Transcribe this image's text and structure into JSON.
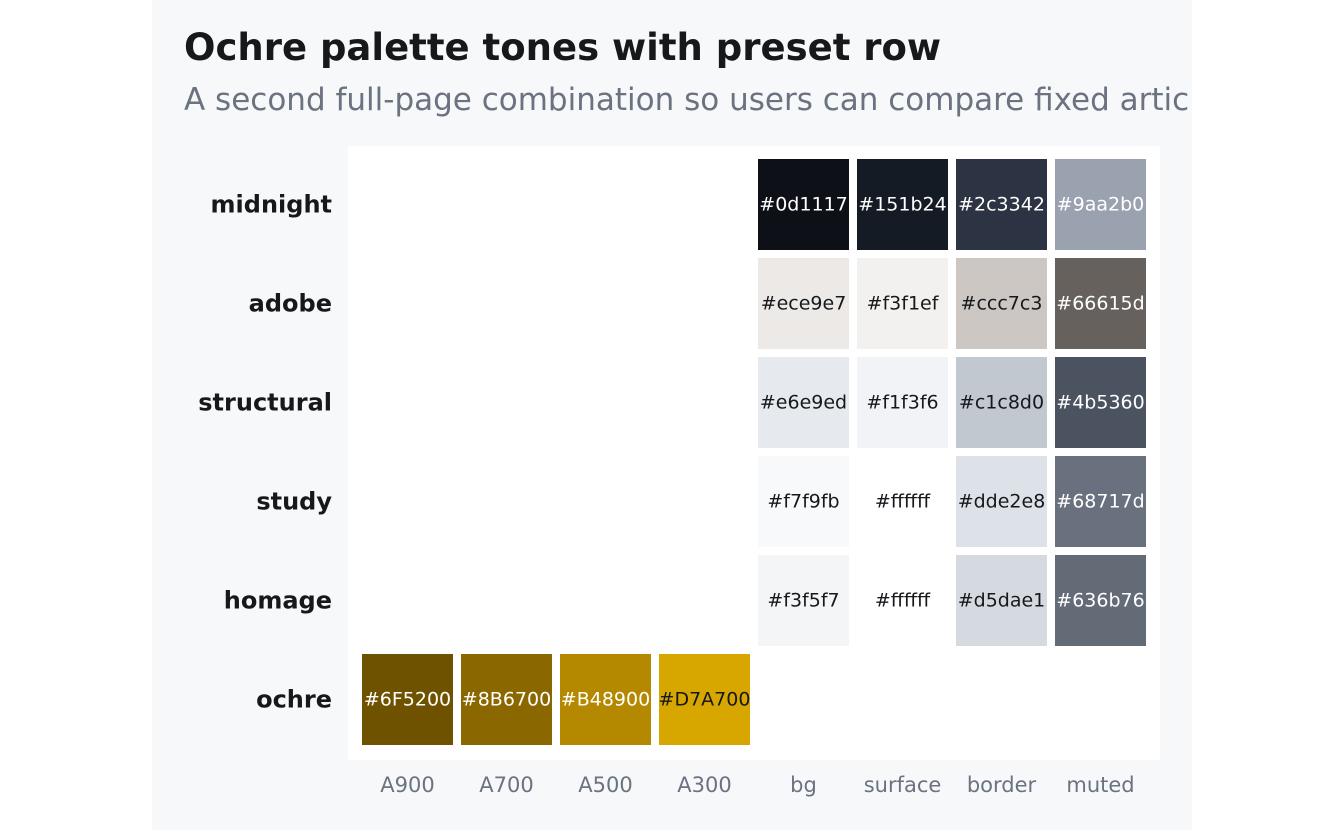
{
  "title": "Ochre palette tones with preset row",
  "subtitle": "A second full-page combination so users can compare fixed articles",
  "chart_data": {
    "type": "heatmap",
    "rows": [
      "midnight",
      "adobe",
      "structural",
      "study",
      "homage",
      "ochre"
    ],
    "columns": [
      "A900",
      "A700",
      "A500",
      "A300",
      "bg",
      "surface",
      "border",
      "muted"
    ],
    "cells": [
      {
        "row": "midnight",
        "column": "bg",
        "value": "#0d1117",
        "color": "#0d1117",
        "text_color": "#ffffff"
      },
      {
        "row": "midnight",
        "column": "surface",
        "value": "#151b24",
        "color": "#151b24",
        "text_color": "#ffffff"
      },
      {
        "row": "midnight",
        "column": "border",
        "value": "#2c3342",
        "color": "#2c3342",
        "text_color": "#ffffff"
      },
      {
        "row": "midnight",
        "column": "muted",
        "value": "#9aa2b0",
        "color": "#9aa2b0",
        "text_color": "#ffffff"
      },
      {
        "row": "adobe",
        "column": "bg",
        "value": "#ece9e7",
        "color": "#ece9e7",
        "text_color": "#16181b"
      },
      {
        "row": "adobe",
        "column": "surface",
        "value": "#f3f1ef",
        "color": "#f3f1ef",
        "text_color": "#16181b"
      },
      {
        "row": "adobe",
        "column": "border",
        "value": "#ccc7c3",
        "color": "#ccc7c3",
        "text_color": "#16181b"
      },
      {
        "row": "adobe",
        "column": "muted",
        "value": "#66615d",
        "color": "#66615d",
        "text_color": "#ffffff"
      },
      {
        "row": "structural",
        "column": "bg",
        "value": "#e6e9ed",
        "color": "#e6e9ed",
        "text_color": "#16181b"
      },
      {
        "row": "structural",
        "column": "surface",
        "value": "#f1f3f6",
        "color": "#f1f3f6",
        "text_color": "#16181b"
      },
      {
        "row": "structural",
        "column": "border",
        "value": "#c1c8d0",
        "color": "#c1c8d0",
        "text_color": "#16181b"
      },
      {
        "row": "structural",
        "column": "muted",
        "value": "#4b5360",
        "color": "#4b5360",
        "text_color": "#ffffff"
      },
      {
        "row": "study",
        "column": "bg",
        "value": "#f7f9fb",
        "color": "#f7f9fb",
        "text_color": "#16181b"
      },
      {
        "row": "study",
        "column": "surface",
        "value": "#ffffff",
        "color": "#ffffff",
        "text_color": "#16181b"
      },
      {
        "row": "study",
        "column": "border",
        "value": "#dde2e8",
        "color": "#dde2e8",
        "text_color": "#16181b"
      },
      {
        "row": "study",
        "column": "muted",
        "value": "#68717d",
        "color": "#68717d",
        "text_color": "#ffffff"
      },
      {
        "row": "homage",
        "column": "bg",
        "value": "#f3f5f7",
        "color": "#f3f5f7",
        "text_color": "#16181b"
      },
      {
        "row": "homage",
        "column": "surface",
        "value": "#ffffff",
        "color": "#ffffff",
        "text_color": "#16181b"
      },
      {
        "row": "homage",
        "column": "border",
        "value": "#d5dae1",
        "color": "#d5dae1",
        "text_color": "#16181b"
      },
      {
        "row": "homage",
        "column": "muted",
        "value": "#636b76",
        "color": "#636b76",
        "text_color": "#ffffff"
      },
      {
        "row": "ochre",
        "column": "A900",
        "value": "#6F5200",
        "color": "#6F5200",
        "text_color": "#ffffff"
      },
      {
        "row": "ochre",
        "column": "A700",
        "value": "#8B6700",
        "color": "#8B6700",
        "text_color": "#ffffff"
      },
      {
        "row": "ochre",
        "column": "A500",
        "value": "#B48900",
        "color": "#B48900",
        "text_color": "#ffffff"
      },
      {
        "row": "ochre",
        "column": "A300",
        "value": "#D7A700",
        "color": "#D7A700",
        "text_color": "#16181b"
      }
    ],
    "grid": false
  },
  "colors": {
    "page_background": "#ffffff",
    "panel_background": "#f7f8fa",
    "plot_background": "#ffffff",
    "title": "#16181b",
    "subtitle": "#6b7280",
    "axis_text": "#6b7280"
  }
}
